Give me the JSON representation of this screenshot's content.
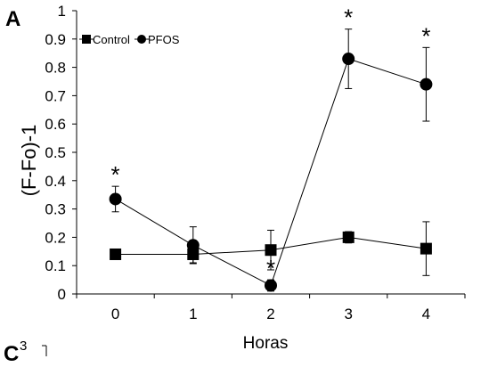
{
  "chart_data": {
    "type": "line",
    "panel_label": "A",
    "next_panel_label": "C",
    "next_panel_partial_tick": "3",
    "xlabel": "Horas",
    "ylabel": "(F-Fo)-1",
    "x": [
      0,
      1,
      2,
      3,
      4
    ],
    "xlim": [
      -0.5,
      4.5
    ],
    "ylim": [
      0,
      1
    ],
    "yticks": [
      0,
      0.1,
      0.2,
      0.3,
      0.4,
      0.5,
      0.6,
      0.7,
      0.8,
      0.9,
      1
    ],
    "ytick_labels": [
      "0",
      "0.1",
      "0.2",
      "0.3",
      "0.4",
      "0.5",
      "0.6",
      "0.7",
      "0.8",
      "0.9",
      "1"
    ],
    "xtick_labels": [
      "0",
      "1",
      "2",
      "3",
      "4"
    ],
    "grid": false,
    "legend_position": "top-left",
    "series": [
      {
        "name": "Control",
        "marker": "square",
        "color": "#000000",
        "values": [
          0.14,
          0.14,
          0.155,
          0.2,
          0.16
        ],
        "error": [
          0.01,
          0.03,
          0.07,
          0.02,
          0.095
        ]
      },
      {
        "name": "PFOS",
        "marker": "circle",
        "color": "#000000",
        "values": [
          0.335,
          0.172,
          0.03,
          0.83,
          0.74
        ],
        "error": [
          0.045,
          0.065,
          0.02,
          0.105,
          0.13
        ]
      }
    ],
    "significance": [
      {
        "x": 0,
        "label": "*"
      },
      {
        "x": 2,
        "label": "*"
      },
      {
        "x": 3,
        "label": "*"
      },
      {
        "x": 4,
        "label": "*"
      }
    ]
  }
}
